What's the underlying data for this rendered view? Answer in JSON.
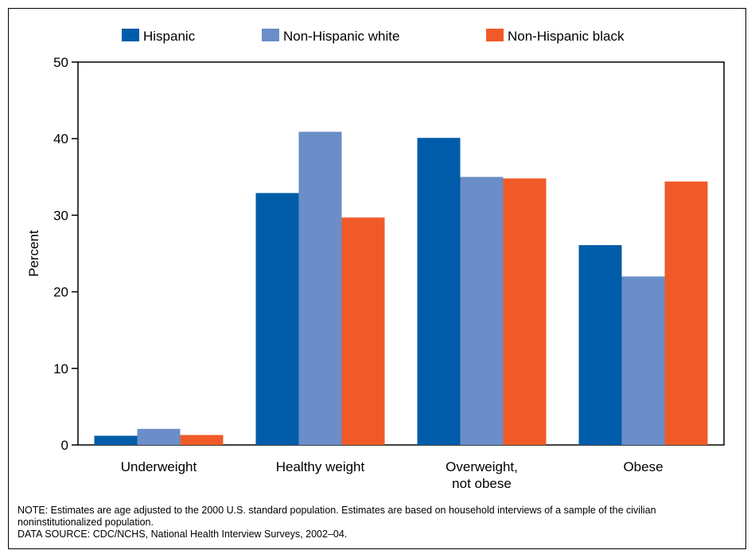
{
  "chart_data": {
    "type": "bar",
    "categories": [
      "Underweight",
      "Healthy weight",
      "Overweight, not obese",
      "Obese"
    ],
    "category_lines": [
      [
        "Underweight"
      ],
      [
        "Healthy weight"
      ],
      [
        "Overweight,",
        "not obese"
      ],
      [
        "Obese"
      ]
    ],
    "series": [
      {
        "name": "Hispanic",
        "color": "#005ca8",
        "values": [
          1.2,
          32.9,
          40.1,
          26.1
        ]
      },
      {
        "name": "Non-Hispanic white",
        "color": "#6b8ec8",
        "values": [
          2.1,
          40.9,
          35.0,
          22.0
        ]
      },
      {
        "name": "Non-Hispanic black",
        "color": "#f05a28",
        "values": [
          1.3,
          29.7,
          34.8,
          34.4
        ]
      }
    ],
    "ylabel": "Percent",
    "ylim": [
      0,
      50
    ],
    "yticks": [
      0,
      10,
      20,
      30,
      40,
      50
    ],
    "legend_position": "top",
    "grid": false
  },
  "notes": {
    "note": "NOTE: Estimates are age adjusted to the 2000 U.S. standard population. Estimates are based on household interviews of a sample of the civilian noninstitutionalized population.",
    "source": "DATA SOURCE: CDC/NCHS, National Health Interview Surveys, 2002–04."
  }
}
